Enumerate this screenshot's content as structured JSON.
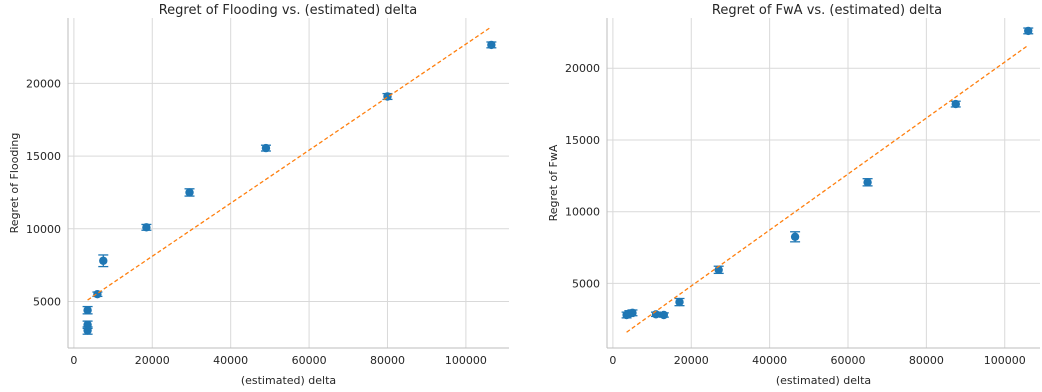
{
  "colors": {
    "points": "#1f77b4",
    "fit": "#ff7f0e",
    "grid": "#d9d9d9"
  },
  "chart_data": [
    {
      "type": "scatter",
      "title": "Regret of Flooding vs. (estimated) delta",
      "xlabel": "(estimated) delta",
      "ylabel": "Regret of Flooding",
      "xlim": [
        -1500,
        111000
      ],
      "ylim": [
        1800,
        24500
      ],
      "xticks": [
        0,
        20000,
        40000,
        60000,
        80000,
        100000
      ],
      "yticks": [
        5000,
        10000,
        15000,
        20000
      ],
      "grid": true,
      "series": [
        {
          "type": "scatter-with-errorbars",
          "points": [
            {
              "x": 3500,
              "y": 3000,
              "err": 250
            },
            {
              "x": 3500,
              "y": 3400,
              "err": 250
            },
            {
              "x": 3500,
              "y": 4400,
              "err": 250
            },
            {
              "x": 6000,
              "y": 5500,
              "err": 150
            },
            {
              "x": 7500,
              "y": 7800,
              "err": 400
            },
            {
              "x": 18500,
              "y": 10100,
              "err": 200
            },
            {
              "x": 29500,
              "y": 12500,
              "err": 250
            },
            {
              "x": 49000,
              "y": 15550,
              "err": 200
            },
            {
              "x": 80000,
              "y": 19100,
              "err": 200
            },
            {
              "x": 106500,
              "y": 22650,
              "err": 200
            }
          ]
        },
        {
          "type": "fit-line",
          "points": [
            {
              "x": 3500,
              "y": 5100
            },
            {
              "x": 106000,
              "y": 23800
            }
          ]
        }
      ]
    },
    {
      "type": "scatter",
      "title": "Regret of FwA vs. (estimated) delta",
      "xlabel": "(estimated) delta",
      "ylabel": "Regret of FwA",
      "xlim": [
        -1500,
        109000
      ],
      "ylim": [
        500,
        23500
      ],
      "xticks": [
        0,
        20000,
        40000,
        60000,
        80000,
        100000
      ],
      "yticks": [
        5000,
        10000,
        15000,
        20000
      ],
      "grid": true,
      "series": [
        {
          "type": "scatter-with-errorbars",
          "points": [
            {
              "x": 3500,
              "y": 2800,
              "err": 200
            },
            {
              "x": 4200,
              "y": 2900,
              "err": 200
            },
            {
              "x": 5000,
              "y": 2950,
              "err": 200
            },
            {
              "x": 11000,
              "y": 2850,
              "err": 150
            },
            {
              "x": 13000,
              "y": 2800,
              "err": 150
            },
            {
              "x": 17000,
              "y": 3700,
              "err": 250
            },
            {
              "x": 27000,
              "y": 5950,
              "err": 250
            },
            {
              "x": 46500,
              "y": 8250,
              "err": 350
            },
            {
              "x": 65000,
              "y": 12050,
              "err": 250
            },
            {
              "x": 87500,
              "y": 17500,
              "err": 200
            },
            {
              "x": 106000,
              "y": 22600,
              "err": 200
            }
          ]
        },
        {
          "type": "fit-line",
          "points": [
            {
              "x": 3500,
              "y": 1600
            },
            {
              "x": 106000,
              "y": 21600
            }
          ]
        }
      ]
    }
  ]
}
